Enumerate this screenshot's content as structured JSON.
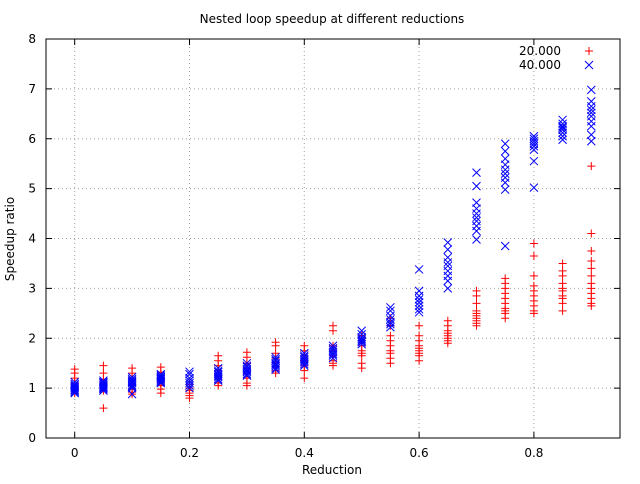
{
  "chart_data": {
    "type": "scatter",
    "title": "Nested loop speedup at different reductions",
    "xlabel": "Reduction",
    "ylabel": "Speedup ratio",
    "xlim": [
      -0.05,
      0.95
    ],
    "ylim": [
      0,
      8
    ],
    "x_ticks": [
      0,
      0.2,
      0.4,
      0.6,
      0.8
    ],
    "x_tick_labels": [
      "0",
      "0.2",
      "0.4",
      "0.6",
      "0.8"
    ],
    "y_ticks": [
      0,
      1,
      2,
      3,
      4,
      5,
      6,
      7,
      8
    ],
    "y_tick_labels": [
      "0",
      "1",
      "2",
      "3",
      "4",
      "5",
      "6",
      "7",
      "8"
    ],
    "grid": true,
    "legend_position": "top-right",
    "series": [
      {
        "name": "20.000",
        "color": "#ff0000",
        "marker": "plus",
        "points": [
          {
            "x": 0,
            "y": [
              1.38,
              1.3,
              1.2,
              1.1,
              1.05,
              1.0,
              0.95,
              0.9
            ]
          },
          {
            "x": 0.05,
            "y": [
              1.45,
              1.3,
              1.18,
              1.1,
              1.05,
              1.0,
              0.95,
              0.6
            ]
          },
          {
            "x": 0.1,
            "y": [
              1.4,
              1.3,
              1.2,
              1.12,
              1.05,
              0.98,
              0.92,
              0.88
            ]
          },
          {
            "x": 0.15,
            "y": [
              1.42,
              1.32,
              1.25,
              1.18,
              1.1,
              1.05,
              0.98,
              0.9
            ]
          },
          {
            "x": 0.2,
            "y": [
              1.08,
              1.0,
              0.95,
              0.9,
              0.85,
              0.8
            ]
          },
          {
            "x": 0.25,
            "y": [
              1.65,
              1.55,
              1.45,
              1.35,
              1.25,
              1.18,
              1.1,
              1.05
            ]
          },
          {
            "x": 0.3,
            "y": [
              1.72,
              1.62,
              1.5,
              1.4,
              1.3,
              1.2,
              1.1,
              1.05
            ]
          },
          {
            "x": 0.35,
            "y": [
              1.92,
              1.85,
              1.7,
              1.6,
              1.5,
              1.42,
              1.35,
              1.3
            ]
          },
          {
            "x": 0.4,
            "y": [
              1.85,
              1.75,
              1.65,
              1.55,
              1.45,
              1.35,
              1.2
            ]
          },
          {
            "x": 0.45,
            "y": [
              2.25,
              2.15,
              1.85,
              1.75,
              1.65,
              1.55,
              1.5,
              1.45
            ]
          },
          {
            "x": 0.5,
            "y": [
              2.05,
              1.95,
              1.85,
              1.75,
              1.7,
              1.65,
              1.5,
              1.4
            ]
          },
          {
            "x": 0.55,
            "y": [
              2.4,
              2.25,
              2.05,
              1.95,
              1.85,
              1.75,
              1.7,
              1.6,
              1.5
            ]
          },
          {
            "x": 0.6,
            "y": [
              2.25,
              2.05,
              1.95,
              1.85,
              1.8,
              1.75,
              1.7,
              1.65,
              1.55
            ]
          },
          {
            "x": 0.65,
            "y": [
              2.35,
              2.25,
              2.15,
              2.1,
              2.05,
              2.0,
              1.95,
              1.9
            ]
          },
          {
            "x": 0.7,
            "y": [
              2.95,
              2.85,
              2.7,
              2.55,
              2.5,
              2.45,
              2.4,
              2.35,
              2.3,
              2.25
            ]
          },
          {
            "x": 0.75,
            "y": [
              3.2,
              3.1,
              3.0,
              2.9,
              2.8,
              2.7,
              2.6,
              2.55,
              2.5,
              2.4
            ]
          },
          {
            "x": 0.8,
            "y": [
              3.9,
              3.65,
              3.25,
              3.05,
              2.95,
              2.85,
              2.75,
              2.65,
              2.55,
              2.5
            ]
          },
          {
            "x": 0.85,
            "y": [
              3.5,
              3.35,
              3.25,
              3.1,
              3.0,
              2.95,
              2.85,
              2.8,
              2.7,
              2.55
            ]
          },
          {
            "x": 0.9,
            "y": [
              5.45,
              4.1,
              3.75,
              3.55,
              3.4,
              3.25,
              3.1,
              3.0,
              2.9,
              2.8,
              2.7,
              2.65
            ]
          }
        ]
      },
      {
        "name": "40.000",
        "color": "#0000ff",
        "marker": "cross",
        "points": [
          {
            "x": 0,
            "y": [
              1.12,
              1.08,
              1.05,
              1.02,
              1.0,
              0.97,
              0.95,
              0.92,
              0.9
            ]
          },
          {
            "x": 0.05,
            "y": [
              1.15,
              1.12,
              1.1,
              1.07,
              1.05,
              1.02,
              1.0,
              0.98,
              0.95
            ]
          },
          {
            "x": 0.1,
            "y": [
              1.22,
              1.18,
              1.15,
              1.12,
              1.1,
              1.06,
              1.03,
              1.0,
              0.88
            ]
          },
          {
            "x": 0.15,
            "y": [
              1.28,
              1.25,
              1.22,
              1.2,
              1.18,
              1.15,
              1.12,
              1.1
            ]
          },
          {
            "x": 0.2,
            "y": [
              1.33,
              1.28,
              1.2,
              1.15,
              1.1,
              1.05,
              1.0
            ]
          },
          {
            "x": 0.25,
            "y": [
              1.4,
              1.35,
              1.32,
              1.28,
              1.25,
              1.22,
              1.18,
              1.15
            ]
          },
          {
            "x": 0.3,
            "y": [
              1.5,
              1.45,
              1.42,
              1.38,
              1.35,
              1.32,
              1.28,
              1.25
            ]
          },
          {
            "x": 0.35,
            "y": [
              1.62,
              1.58,
              1.55,
              1.5,
              1.47,
              1.44,
              1.4,
              1.37
            ]
          },
          {
            "x": 0.4,
            "y": [
              1.7,
              1.65,
              1.62,
              1.58,
              1.55,
              1.52,
              1.48,
              1.45
            ]
          },
          {
            "x": 0.45,
            "y": [
              1.85,
              1.8,
              1.76,
              1.72,
              1.68,
              1.65,
              1.6
            ]
          },
          {
            "x": 0.5,
            "y": [
              2.15,
              2.08,
              2.02,
              1.98,
              1.95,
              1.92,
              1.88
            ]
          },
          {
            "x": 0.55,
            "y": [
              2.62,
              2.55,
              2.45,
              2.38,
              2.32,
              2.28,
              2.22
            ]
          },
          {
            "x": 0.6,
            "y": [
              3.38,
              2.95,
              2.85,
              2.78,
              2.72,
              2.65,
              2.58,
              2.52
            ]
          },
          {
            "x": 0.65,
            "y": [
              3.92,
              3.78,
              3.62,
              3.52,
              3.45,
              3.35,
              3.25,
              3.15,
              3.0
            ]
          },
          {
            "x": 0.7,
            "y": [
              5.32,
              5.05,
              4.72,
              4.6,
              4.5,
              4.42,
              4.35,
              4.25,
              4.15,
              3.98
            ]
          },
          {
            "x": 0.75,
            "y": [
              5.9,
              5.75,
              5.6,
              5.48,
              5.38,
              5.3,
              5.22,
              5.12,
              4.98,
              3.85
            ]
          },
          {
            "x": 0.8,
            "y": [
              6.05,
              6.0,
              5.95,
              5.9,
              5.85,
              5.78,
              5.55,
              5.02
            ]
          },
          {
            "x": 0.85,
            "y": [
              6.38,
              6.3,
              6.25,
              6.22,
              6.18,
              6.12,
              6.05,
              5.98
            ]
          },
          {
            "x": 0.9,
            "y": [
              6.98,
              6.75,
              6.65,
              6.58,
              6.52,
              6.45,
              6.35,
              6.25,
              6.08,
              5.95
            ]
          }
        ]
      }
    ]
  }
}
